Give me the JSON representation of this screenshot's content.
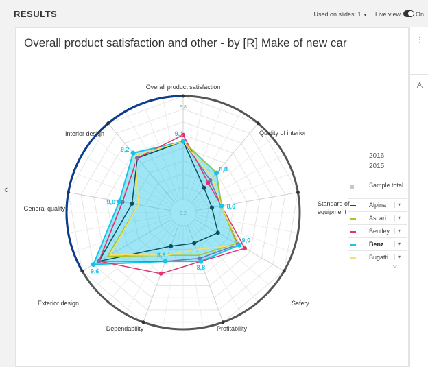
{
  "header": {
    "title": "RESULTS",
    "slides_label": "Used on slides: 1",
    "slides_caret": "▼",
    "live_view_label": "Live view",
    "live_view_state": "On"
  },
  "chart_data": {
    "type": "radar",
    "title": "Overall product satisfaction and other - by [R] Make of new car",
    "axes": [
      "Overall product satisfaction",
      "Quality of interior",
      "Standard of equipment",
      "Safety",
      "Profitability",
      "Dependability",
      "Exterior design",
      "General quality",
      "Interior design"
    ],
    "rlim": [
      8.2,
      9.8
    ],
    "tick_labels": {
      "min": "8,2",
      "max": "9,8"
    },
    "grid": true,
    "series": [
      {
        "name": "Benz",
        "color": "#17c4e9",
        "values": [
          9.1,
          8.8,
          8.6,
          9.0,
          8.8,
          8.8,
          9.6,
          9.0,
          9.2
        ],
        "labels": [
          "9,1",
          "8,8",
          "8,6",
          "9,0",
          "8,8",
          "8,8",
          "9,6",
          "9,0",
          "9,2"
        ]
      },
      {
        "name": "Alpina",
        "color": "#0e4f5e",
        "values": [
          9.1,
          8.5,
          8.45,
          8.62,
          8.5,
          8.55,
          9.5,
          8.8,
          9.1
        ]
      },
      {
        "name": "Ascari",
        "color": "#a8c520",
        "values": [
          9.1,
          8.8,
          8.6,
          8.95,
          8.7,
          8.7,
          9.35,
          8.7,
          9.15
        ]
      },
      {
        "name": "Bentley",
        "color": "#e0336e",
        "values": [
          9.2,
          8.6,
          8.6,
          9.1,
          8.8,
          9.0,
          9.5,
          8.95,
          9.1
        ]
      },
      {
        "name": "Bugatti",
        "color": "#f7e066",
        "values": [
          9.1,
          8.7,
          8.6,
          9.0,
          8.6,
          8.7,
          9.3,
          8.7,
          9.15
        ]
      },
      {
        "name": "Sample total",
        "color": "#7a70a8",
        "values": [
          9.1,
          8.65,
          8.6,
          8.98,
          8.75,
          8.8,
          9.5,
          8.95,
          9.1
        ]
      }
    ],
    "legend": {
      "years": [
        "2016",
        "2015"
      ],
      "entries": [
        {
          "name": "Sample total",
          "color": "#c8c8c8"
        },
        {
          "name": "Alpina",
          "color": "#0e4f5e"
        },
        {
          "name": "Ascari",
          "color": "#a8c520"
        },
        {
          "name": "Bentley",
          "color": "#e0336e"
        },
        {
          "name": "Benz",
          "color": "#17c4e9"
        },
        {
          "name": "Bugatti",
          "color": "#f7e066"
        }
      ],
      "caret": "▾",
      "more": "⌵"
    }
  },
  "icons": {
    "settings": "settings-sliders-icon",
    "brush": "brush-icon",
    "nav_left": "chevron-left-icon"
  },
  "glyphs": {
    "nav_left": "‹",
    "sliders": "⫶",
    "brush": "♙"
  }
}
